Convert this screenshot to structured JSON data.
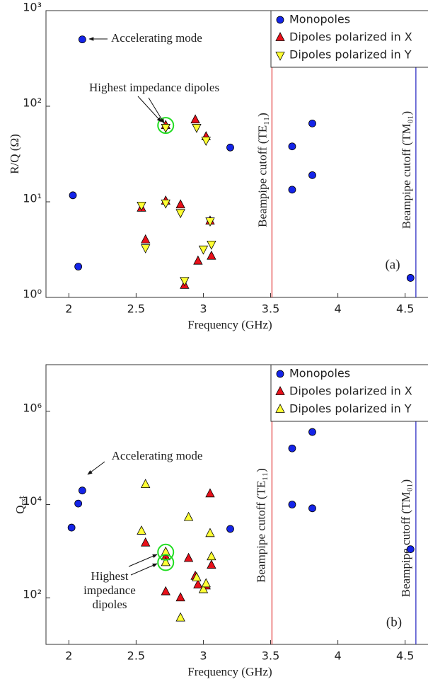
{
  "chart_data": [
    {
      "type": "scatter",
      "xlabel": "Frequency (GHz)",
      "ylabel": "R/Q (Ω)",
      "log_y": true,
      "xlim": [
        1.83,
        4.67
      ],
      "xticks": [
        2,
        2.5,
        3,
        3.5,
        4,
        4.5
      ],
      "ylim": [
        1,
        1000
      ],
      "yticks": [
        {
          "value": 1,
          "label": "10⁰"
        },
        {
          "value": 10,
          "label": "10¹"
        },
        {
          "value": 100,
          "label": "10²"
        },
        {
          "value": 1000,
          "label": "10³"
        }
      ],
      "legend": "upper right",
      "panel_label": "(a)",
      "accelerating_label": "Accelerating mode",
      "highlight_label": [
        "Highest impedance dipoles"
      ],
      "vlines": [
        {
          "x": 3.51,
          "color": "#e03030",
          "label": "Beampipe cutoff (TE₁₁)"
        },
        {
          "x": 4.58,
          "color": "#2020c0",
          "label": "Beampipe cutoff (TM₀₁)"
        }
      ],
      "series": [
        {
          "name": "Monopoles",
          "color": "#1424e8",
          "marker": "o",
          "x": [
            2.1,
            2.03,
            2.07,
            3.2,
            3.66,
            3.81,
            3.66,
            3.81,
            4.54
          ],
          "values": [
            500,
            11.7,
            2.1,
            37,
            38,
            66,
            13.4,
            19,
            1.6
          ]
        },
        {
          "name": "Dipoles polarized in X",
          "color": "#e8101a",
          "marker": "^",
          "x": [
            2.54,
            2.57,
            2.72,
            2.72,
            2.83,
            2.86,
            2.94,
            3.02,
            3.05,
            2.96,
            3.06
          ],
          "values": [
            8.6,
            4.0,
            10.2,
            63,
            9.3,
            1.34,
            72,
            48,
            6.3,
            2.4,
            2.7
          ]
        },
        {
          "name": "Dipoles polarized in Y",
          "color": "#ffff33",
          "marker": "v",
          "x": [
            2.54,
            2.57,
            2.72,
            2.72,
            2.83,
            2.86,
            2.95,
            3.02,
            3.05,
            3.0,
            3.06
          ],
          "values": [
            9.2,
            3.3,
            9.7,
            60,
            7.7,
            1.5,
            60,
            44,
            6.3,
            3.2,
            3.6
          ]
        }
      ]
    },
    {
      "type": "scatter",
      "xlabel": "Frequency (GHz)",
      "ylabel": "Qₑₓₜ",
      "log_y": true,
      "xlim": [
        1.83,
        4.67
      ],
      "xticks": [
        2,
        2.5,
        3,
        3.5,
        4,
        4.5
      ],
      "ylim": [
        10,
        10000000
      ],
      "yticks": [
        {
          "value": 100,
          "label": "10²"
        },
        {
          "value": 10000,
          "label": "10⁴"
        },
        {
          "value": 1000000,
          "label": "10⁶"
        }
      ],
      "legend": "upper right",
      "panel_label": "(b)",
      "accelerating_label": "Accelerating mode",
      "highlight_label": [
        "Highest",
        "impedance",
        "dipoles"
      ],
      "vlines": [
        {
          "x": 3.51,
          "color": "#e03030",
          "label": "Beampipe cutoff (TE₁₁)"
        },
        {
          "x": 4.58,
          "color": "#2020c0",
          "label": "Beampipe cutoff (TM₀₁)"
        }
      ],
      "series": [
        {
          "name": "Monopoles",
          "color": "#1424e8",
          "marker": "o",
          "x": [
            2.02,
            2.07,
            2.1,
            3.2,
            3.66,
            3.81,
            3.66,
            3.81,
            4.54
          ],
          "values": [
            3200,
            10500,
            20000,
            3000,
            160000,
            360000,
            10000,
            8300,
            1100
          ]
        },
        {
          "name": "Dipoles polarized in X",
          "color": "#e8101a",
          "marker": "^",
          "x": [
            2.57,
            2.72,
            2.72,
            2.83,
            2.89,
            2.94,
            2.96,
            3.05,
            3.06,
            3.02
          ],
          "values": [
            1500,
            760,
            135,
            100,
            700,
            290,
            190,
            17000,
            500,
            180
          ]
        },
        {
          "name": "Dipoles polarized in Y",
          "color": "#ffff33",
          "marker": "^",
          "x": [
            2.54,
            2.57,
            2.72,
            2.72,
            2.83,
            2.89,
            2.95,
            3.0,
            3.02,
            3.05,
            3.06
          ],
          "values": [
            2700,
            27000,
            950,
            570,
            37,
            5300,
            270,
            150,
            200,
            2400,
            760
          ]
        }
      ]
    }
  ]
}
